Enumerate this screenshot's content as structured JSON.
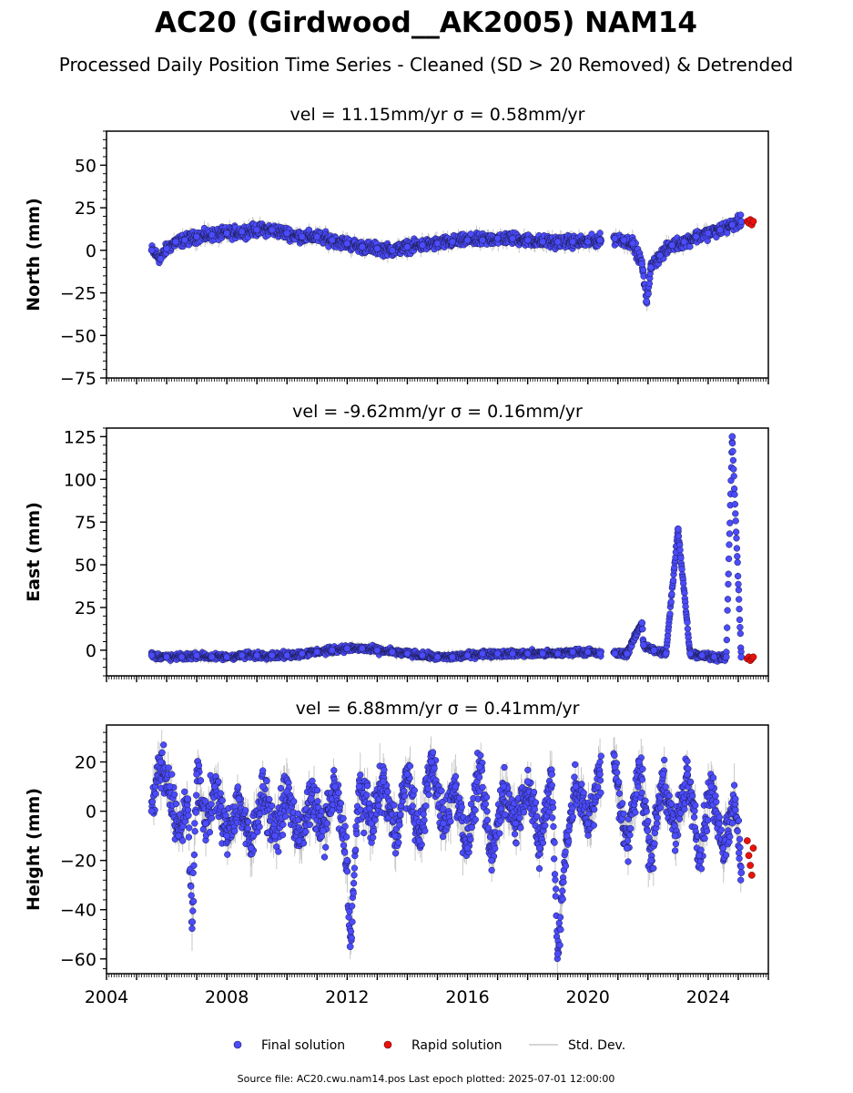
{
  "title": "AC20 (Girdwood__AK2005) NAM14",
  "subtitle": "Processed Daily Position Time Series - Cleaned (SD > 20 Removed) & Detrended",
  "footer": "Source file: AC20.cwu.nam14.pos  Last epoch plotted: 2025-07-01 12:00:00",
  "legend": {
    "final": "Final solution",
    "rapid": "Rapid solution",
    "std": "Std. Dev."
  },
  "colors": {
    "final": "#4b4bff",
    "final_edge": "#1a1a4a",
    "rapid": "#e8120c",
    "std": "#c8c8c8"
  },
  "chart_data": [
    {
      "type": "scatter",
      "title": "vel = 11.15mm/yr   σ = 0.58mm/yr",
      "ylabel": "North (mm)",
      "xlim": [
        2004.0,
        2026.0
      ],
      "ylim": [
        -75,
        70
      ],
      "yticks": [
        -75,
        -50,
        -25,
        0,
        25,
        50
      ],
      "series": [
        {
          "name": "Final solution",
          "x": [
            2005.5,
            2005.8,
            2006.0,
            2006.3,
            2006.6,
            2007.0,
            2007.5,
            2008.0,
            2008.5,
            2009.0,
            2009.5,
            2010.0,
            2010.5,
            2011.0,
            2011.5,
            2012.0,
            2012.5,
            2013.0,
            2013.5,
            2014.0,
            2014.5,
            2015.0,
            2015.5,
            2016.0,
            2016.5,
            2017.0,
            2017.5,
            2018.0,
            2018.5,
            2019.0,
            2019.5,
            2020.0,
            2020.4,
            2020.9,
            2021.2,
            2021.5,
            2021.8,
            2021.95,
            2022.1,
            2022.4,
            2022.8,
            2023.2,
            2023.6,
            2024.0,
            2024.4,
            2024.8,
            2025.1
          ],
          "y": [
            0,
            -5,
            1,
            5,
            6,
            8,
            9,
            10,
            11,
            12,
            12,
            10,
            8,
            8,
            6,
            4,
            2,
            1,
            0,
            2,
            3,
            4,
            5,
            6,
            6,
            7,
            7,
            6,
            5,
            5,
            5,
            5,
            6,
            7,
            6,
            4,
            -8,
            -30,
            -10,
            -3,
            3,
            5,
            8,
            10,
            12,
            15,
            17
          ]
        },
        {
          "name": "Rapid solution",
          "x": [
            2025.3,
            2025.35,
            2025.4,
            2025.45,
            2025.5
          ],
          "y": [
            17,
            16,
            18,
            15,
            17
          ]
        }
      ]
    },
    {
      "type": "scatter",
      "title": "vel = -9.62mm/yr   σ = 0.16mm/yr",
      "ylabel": "East (mm)",
      "xlim": [
        2004.0,
        2026.0
      ],
      "ylim": [
        -15,
        130
      ],
      "yticks": [
        0,
        25,
        50,
        75,
        100,
        125
      ],
      "series": [
        {
          "name": "Final solution",
          "x": [
            2005.5,
            2006.0,
            2006.5,
            2007.0,
            2007.5,
            2008.0,
            2008.5,
            2009.0,
            2009.5,
            2010.0,
            2010.5,
            2011.0,
            2011.5,
            2012.0,
            2012.5,
            2013.0,
            2013.5,
            2014.0,
            2014.5,
            2015.0,
            2015.5,
            2016.0,
            2016.5,
            2017.0,
            2017.5,
            2018.0,
            2018.5,
            2019.0,
            2019.5,
            2020.0,
            2020.4,
            2020.9,
            2021.3,
            2021.8,
            2021.85,
            2022.2,
            2022.6,
            2023.0,
            2023.4,
            2023.8,
            2024.2,
            2024.6,
            2024.8,
            2025.1
          ],
          "y": [
            -3,
            -4,
            -4,
            -3,
            -4,
            -4,
            -3,
            -3,
            -3,
            -3,
            -2,
            -1,
            0,
            1,
            1,
            0,
            -1,
            -2,
            -3,
            -4,
            -4,
            -3,
            -2,
            -2,
            -2,
            -2,
            -2,
            -2,
            -1,
            -1,
            -2,
            -2,
            -2,
            16,
            3,
            0,
            -2,
            71,
            -2,
            -3,
            -4,
            -4,
            125,
            -4
          ]
        },
        {
          "name": "Rapid solution",
          "x": [
            2025.3,
            2025.35,
            2025.4,
            2025.45,
            2025.5
          ],
          "y": [
            -5,
            -4,
            -6,
            -5,
            -4
          ]
        }
      ]
    },
    {
      "type": "scatter",
      "title": "vel = 6.88mm/yr   σ = 0.41mm/yr",
      "ylabel": "Height (mm)",
      "xlim": [
        2004.0,
        2026.0
      ],
      "ylim": [
        -66,
        35
      ],
      "yticks": [
        -60,
        -40,
        -20,
        0,
        20
      ],
      "series": [
        {
          "name": "Final solution",
          "x": [
            2005.5,
            2005.8,
            2006.1,
            2006.4,
            2006.7,
            2006.85,
            2007.0,
            2007.3,
            2007.6,
            2008.0,
            2008.4,
            2008.8,
            2009.2,
            2009.6,
            2010.0,
            2010.4,
            2010.8,
            2011.2,
            2011.6,
            2012.0,
            2012.1,
            2012.4,
            2012.8,
            2013.2,
            2013.6,
            2014.0,
            2014.4,
            2014.8,
            2015.2,
            2015.6,
            2016.0,
            2016.4,
            2016.8,
            2017.2,
            2017.6,
            2018.0,
            2018.4,
            2018.8,
            2019.0,
            2019.3,
            2019.6,
            2020.0,
            2020.4,
            2020.9,
            2021.3,
            2021.7,
            2022.1,
            2022.5,
            2022.9,
            2023.3,
            2023.7,
            2024.1,
            2024.5,
            2024.9,
            2025.1
          ],
          "y": [
            0,
            20,
            10,
            -10,
            5,
            -45,
            15,
            -5,
            10,
            -10,
            5,
            -15,
            10,
            -10,
            8,
            -12,
            5,
            -8,
            10,
            -20,
            -55,
            10,
            -5,
            12,
            -10,
            15,
            -12,
            20,
            -5,
            10,
            -15,
            18,
            -20,
            10,
            -5,
            12,
            -15,
            15,
            -58,
            -10,
            10,
            -5,
            15,
            18,
            -15,
            20,
            -20,
            15,
            -10,
            15,
            -18,
            10,
            -15,
            5,
            -25
          ]
        },
        {
          "name": "Rapid solution",
          "x": [
            2025.3,
            2025.35,
            2025.4,
            2025.45,
            2025.5
          ],
          "y": [
            -12,
            -18,
            -22,
            -26,
            -15
          ]
        }
      ]
    }
  ],
  "x_ticks": [
    2004,
    2008,
    2012,
    2016,
    2020,
    2024
  ]
}
